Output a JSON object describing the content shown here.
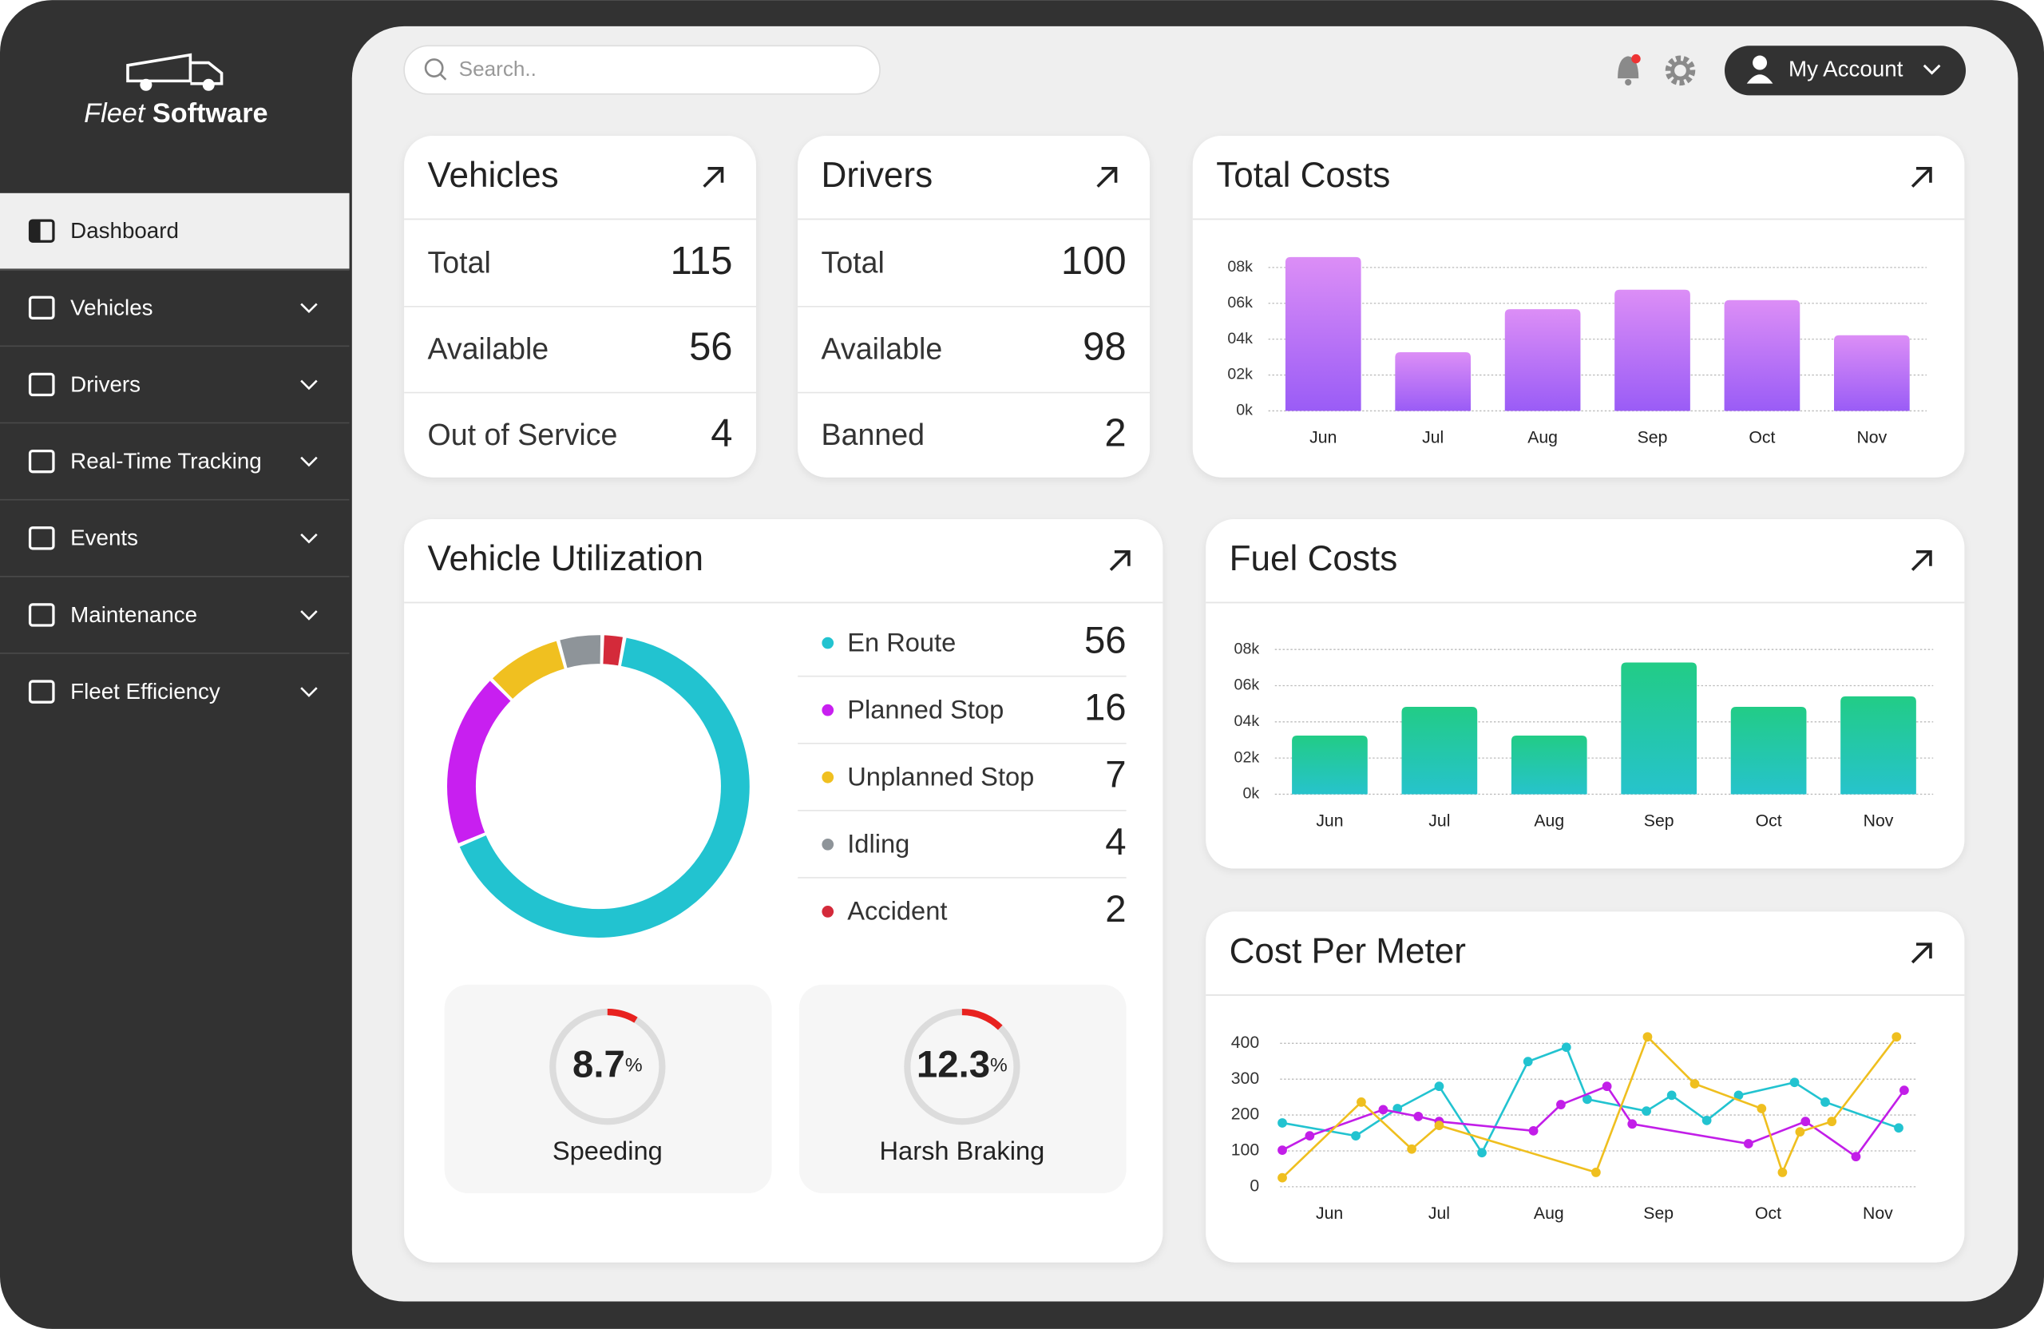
{
  "brand": {
    "name_light": "Fleet",
    "name_bold": "Software"
  },
  "menu": [
    {
      "label": "Dashboard",
      "active": true
    },
    {
      "label": "Vehicles"
    },
    {
      "label": "Drivers"
    },
    {
      "label": "Real-Time Tracking"
    },
    {
      "label": "Events"
    },
    {
      "label": "Maintenance"
    },
    {
      "label": "Fleet Efficiency"
    }
  ],
  "search_placeholder": "Search..",
  "account": "My Account",
  "vehicles": {
    "title": "Vehicles",
    "rows": [
      {
        "label": "Total",
        "value": 115
      },
      {
        "label": "Available",
        "value": 56
      },
      {
        "label": "Out of Service",
        "value": 4
      }
    ]
  },
  "drivers": {
    "title": "Drivers",
    "rows": [
      {
        "label": "Total",
        "value": 100
      },
      {
        "label": "Available",
        "value": 98
      },
      {
        "label": "Banned",
        "value": 2
      }
    ]
  },
  "total_costs": {
    "chart_data": {
      "type": "bar",
      "title": "Total Costs",
      "categories": [
        "Jun",
        "Jul",
        "Aug",
        "Sep",
        "Oct",
        "Nov"
      ],
      "values": [
        8.58,
        3.27,
        5.67,
        6.76,
        6.18,
        4.22
      ],
      "colors": [
        "#dc8ef6",
        "#9a5cf6"
      ],
      "ylim": [
        0,
        9
      ],
      "yticks": [
        {
          "value": 0,
          "label": "0k"
        },
        {
          "value": 2,
          "label": "02k"
        },
        {
          "value": 4,
          "label": "04k"
        },
        {
          "value": 6,
          "label": "06k"
        },
        {
          "value": 8,
          "label": "08k"
        }
      ],
      "grid": true
    }
  },
  "fuel_costs": {
    "chart_data": {
      "type": "bar",
      "title": "Fuel Costs",
      "categories": [
        "Jun",
        "Jul",
        "Aug",
        "Sep",
        "Oct",
        "Nov"
      ],
      "values": [
        3.24,
        4.83,
        3.24,
        7.28,
        4.83,
        5.41
      ],
      "colors": [
        "#22cc86",
        "#26c3cc"
      ],
      "ylim": [
        0,
        9
      ],
      "yticks": [
        {
          "value": 0,
          "label": "0k"
        },
        {
          "value": 2,
          "label": "02k"
        },
        {
          "value": 4,
          "label": "04k"
        },
        {
          "value": 6,
          "label": "06k"
        },
        {
          "value": 8,
          "label": "08k"
        }
      ],
      "grid": true
    }
  },
  "cost_per_meter": {
    "chart_data": {
      "type": "line",
      "title": "Cost Per Meter",
      "xlim": [
        -0.45,
        5.35
      ],
      "xticks": [
        {
          "value": 0,
          "label": "Jun"
        },
        {
          "value": 1,
          "label": "Jul"
        },
        {
          "value": 2,
          "label": "Aug"
        },
        {
          "value": 3,
          "label": "Sep"
        },
        {
          "value": 4,
          "label": "Oct"
        },
        {
          "value": 5,
          "label": "Nov"
        }
      ],
      "ylim": [
        0,
        420
      ],
      "yticks": [
        0,
        100,
        200,
        300,
        400
      ],
      "grid": true,
      "series": [
        {
          "color": "#22c3d0",
          "x": [
            -0.43,
            0.24,
            0.62,
            1.0,
            1.39,
            1.81,
            2.16,
            2.35,
            2.89,
            3.12,
            3.44,
            3.73,
            4.24,
            4.52,
            5.19
          ],
          "values": [
            178,
            142,
            218,
            280,
            95,
            349,
            389,
            244,
            211,
            255,
            185,
            255,
            291,
            236,
            164
          ]
        },
        {
          "color": "#c21ee8",
          "x": [
            -0.43,
            -0.18,
            0.49,
            0.81,
            1.0,
            1.86,
            2.11,
            2.53,
            2.76,
            3.82,
            4.34,
            4.8,
            5.24
          ],
          "values": [
            102,
            142,
            215,
            196,
            182,
            156,
            229,
            280,
            175,
            120,
            182,
            84,
            269
          ]
        },
        {
          "color": "#efbf1f",
          "x": [
            -0.43,
            0.29,
            0.75,
            1.0,
            2.43,
            2.9,
            3.33,
            3.94,
            4.13,
            4.29,
            4.58,
            5.17
          ],
          "values": [
            25,
            236,
            105,
            171,
            40,
            418,
            287,
            218,
            40,
            153,
            182,
            418
          ]
        }
      ]
    }
  },
  "utilization": {
    "chart_data": {
      "type": "donut",
      "title": "Vehicle Utilization",
      "categories": [
        "En Route",
        "Planned Stop",
        "Unplanned Stop",
        "Idling",
        "Accident"
      ],
      "values": [
        56,
        16,
        7,
        4,
        2
      ],
      "colors": [
        "#22c3d0",
        "#c81ff0",
        "#f0c020",
        "#8e9499",
        "#d42a3a"
      ]
    },
    "gauges": [
      {
        "label": "Speeding",
        "value": 8.7,
        "unit": "%"
      },
      {
        "label": "Harsh Braking",
        "value": 12.3,
        "unit": "%"
      }
    ]
  }
}
